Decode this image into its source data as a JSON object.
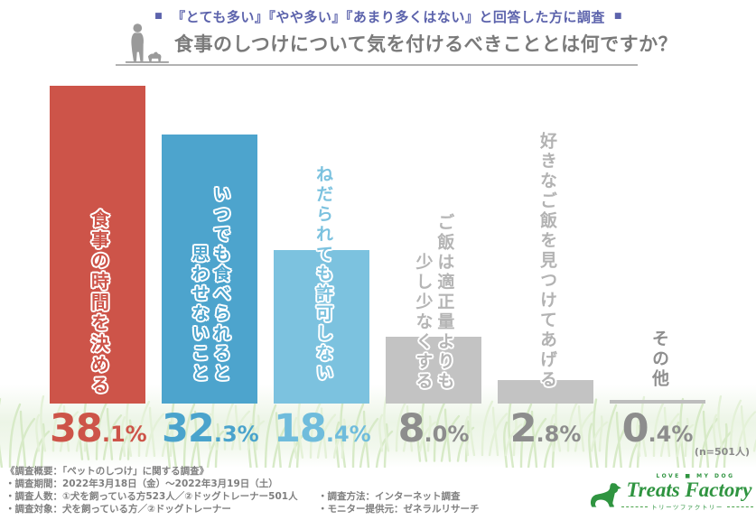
{
  "header": {
    "square": "■",
    "tagline": "『とても多い』『やや多い』『あまり多くはない』と回答した方に調査",
    "title": "食事のしつけについて気を付けるべきこととは何ですか？",
    "tagline_color": "#5c63ac",
    "title_color": "#7a7a7a"
  },
  "chart_data": {
    "type": "bar",
    "title": "食事のしつけについて気を付けるべきこととは何ですか？",
    "subtitle": "『とても多い』『やや多い』『あまり多くはない』と回答した方に調査",
    "categories": [
      "食事の時間を決める",
      "いつでも食べられると思わせないこと",
      "ねだられても許可しない",
      "ご飯は適正量よりも少し少なくする",
      "好きなご飯を見つけてあげる",
      "その他"
    ],
    "values": [
      38.1,
      32.3,
      18.4,
      8.0,
      2.8,
      0.4
    ],
    "unit": "%",
    "ylim": [
      0,
      40
    ],
    "grid": false,
    "legend": false,
    "sample_note": "(n=501人)",
    "bars": [
      {
        "label_lines": [
          "食事の時間を決める"
        ],
        "value": 38.1,
        "value_main": "38",
        "value_sub": ".1%",
        "bar_color": "#cd5449",
        "label_color": "#cd5449",
        "value_color": "#cd5449"
      },
      {
        "label_lines": [
          "いつでも食べられると",
          "思わせないこと"
        ],
        "value": 32.3,
        "value_main": "32",
        "value_sub": ".3%",
        "bar_color": "#4da4cd",
        "label_color": "#4da4cd",
        "value_color": "#4aa3cc"
      },
      {
        "label_lines": [
          "ねだられても許可しない"
        ],
        "value": 18.4,
        "value_main": "18",
        "value_sub": ".4%",
        "bar_color": "#7cc2df",
        "label_color": "#7cc2df",
        "value_color": "#6fbcdc"
      },
      {
        "label_lines": [
          "ご飯は適正量よりも",
          "少し少なくする"
        ],
        "value": 8.0,
        "value_main": "8",
        "value_sub": ".0%",
        "bar_color": "#c3c3c3",
        "label_color": "#b5b5b5",
        "value_color": "#8d8d8d"
      },
      {
        "label_lines": [
          "好きなご飯を見つけてあげる"
        ],
        "value": 2.8,
        "value_main": "2",
        "value_sub": ".8%",
        "bar_color": "#c3c3c3",
        "label_color": "#b3b3b3",
        "value_color": "#8d8d8d"
      },
      {
        "label_lines": [
          "その他"
        ],
        "value": 0.4,
        "value_main": "0",
        "value_sub": ".4%",
        "bar_color": "#bdbdbd",
        "label_color": "#8f8f8f",
        "value_color": "#8d8d8d"
      }
    ]
  },
  "footer": {
    "overview": "《調査概要：「ペットのしつけ」に関する調査》",
    "left": [
      "・調査期間：2022年3月18日（金）～2022年3月19日（土）",
      "・調査人数：①犬を飼っている方523人／②ドッグトレーナー501人",
      "・調査対象：犬を飼っている方／②ドッグトレーナー"
    ],
    "right": [
      "・調査方法：インターネット調査",
      "・モニター提供元：ゼネラルリサーチ"
    ]
  },
  "logo": {
    "top": "LOVE ■ MY DOG",
    "name": "Treats Factory",
    "subtitle": "トリーツファクトリー",
    "color": "#2f9440"
  }
}
